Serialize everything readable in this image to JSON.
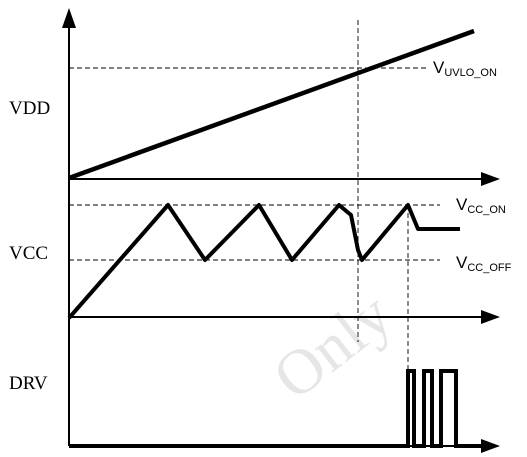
{
  "diagram": {
    "signals": {
      "vdd": "VDD",
      "vcc": "VCC",
      "drv": "DRV"
    },
    "thresholds": {
      "uvlo_on": {
        "base": "V",
        "sub": "UVLO_ON"
      },
      "cc_on": {
        "base": "V",
        "sub": "CC_ON"
      },
      "cc_off": {
        "base": "V",
        "sub": "CC_OFF"
      }
    },
    "watermark": "Only"
  }
}
